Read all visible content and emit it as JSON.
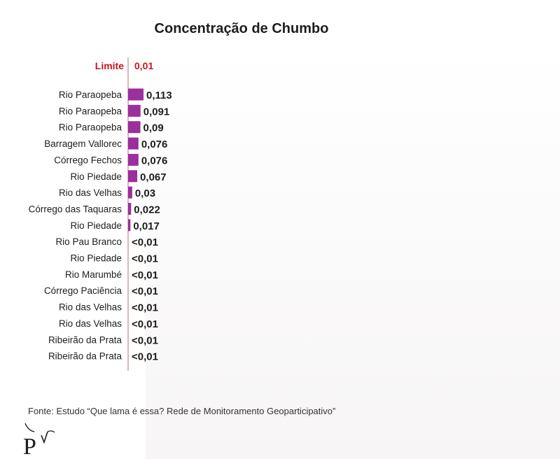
{
  "chart_data": {
    "type": "bar",
    "orientation": "horizontal",
    "title": "Concentração de Chumbo",
    "limit": {
      "label": "Limite",
      "value": 0.01,
      "value_label": "0,01",
      "color": "#c0191f"
    },
    "categories": [
      "Rio Paraopeba",
      "Rio Paraopeba",
      "Rio Paraopeba",
      "Barragem Vallorec",
      "Córrego Fechos",
      "Rio Piedade",
      "Rio das Velhas",
      "Córrego das Taquaras",
      "Rio Piedade",
      "Rio Pau Branco",
      "Rio Piedade",
      "Rio Marumbé",
      "Córrego Paciência",
      "Rio das Velhas",
      "Rio das Velhas",
      "Ribeirão da Prata",
      "Ribeirão da Prata"
    ],
    "values": [
      0.113,
      0.091,
      0.09,
      0.076,
      0.076,
      0.067,
      0.03,
      0.022,
      0.017,
      null,
      null,
      null,
      null,
      null,
      null,
      null,
      null
    ],
    "value_labels": [
      "0,113",
      "0,091",
      "0,09",
      "0,076",
      "0,076",
      "0,067",
      "0,03",
      "0,022",
      "0,017",
      "<0,01",
      "<0,01",
      "<0,01",
      "<0,01",
      "<0,01",
      "<0,01",
      "<0,01",
      "<0,01"
    ],
    "bar_color": "#9b2f9b",
    "axis_line_color": "#c9a3a0"
  },
  "source": "Fonte: Estudo “Que lama é essa? Rede de Monitoramento Geoparticipativo”",
  "logo": {
    "letter": "P"
  }
}
